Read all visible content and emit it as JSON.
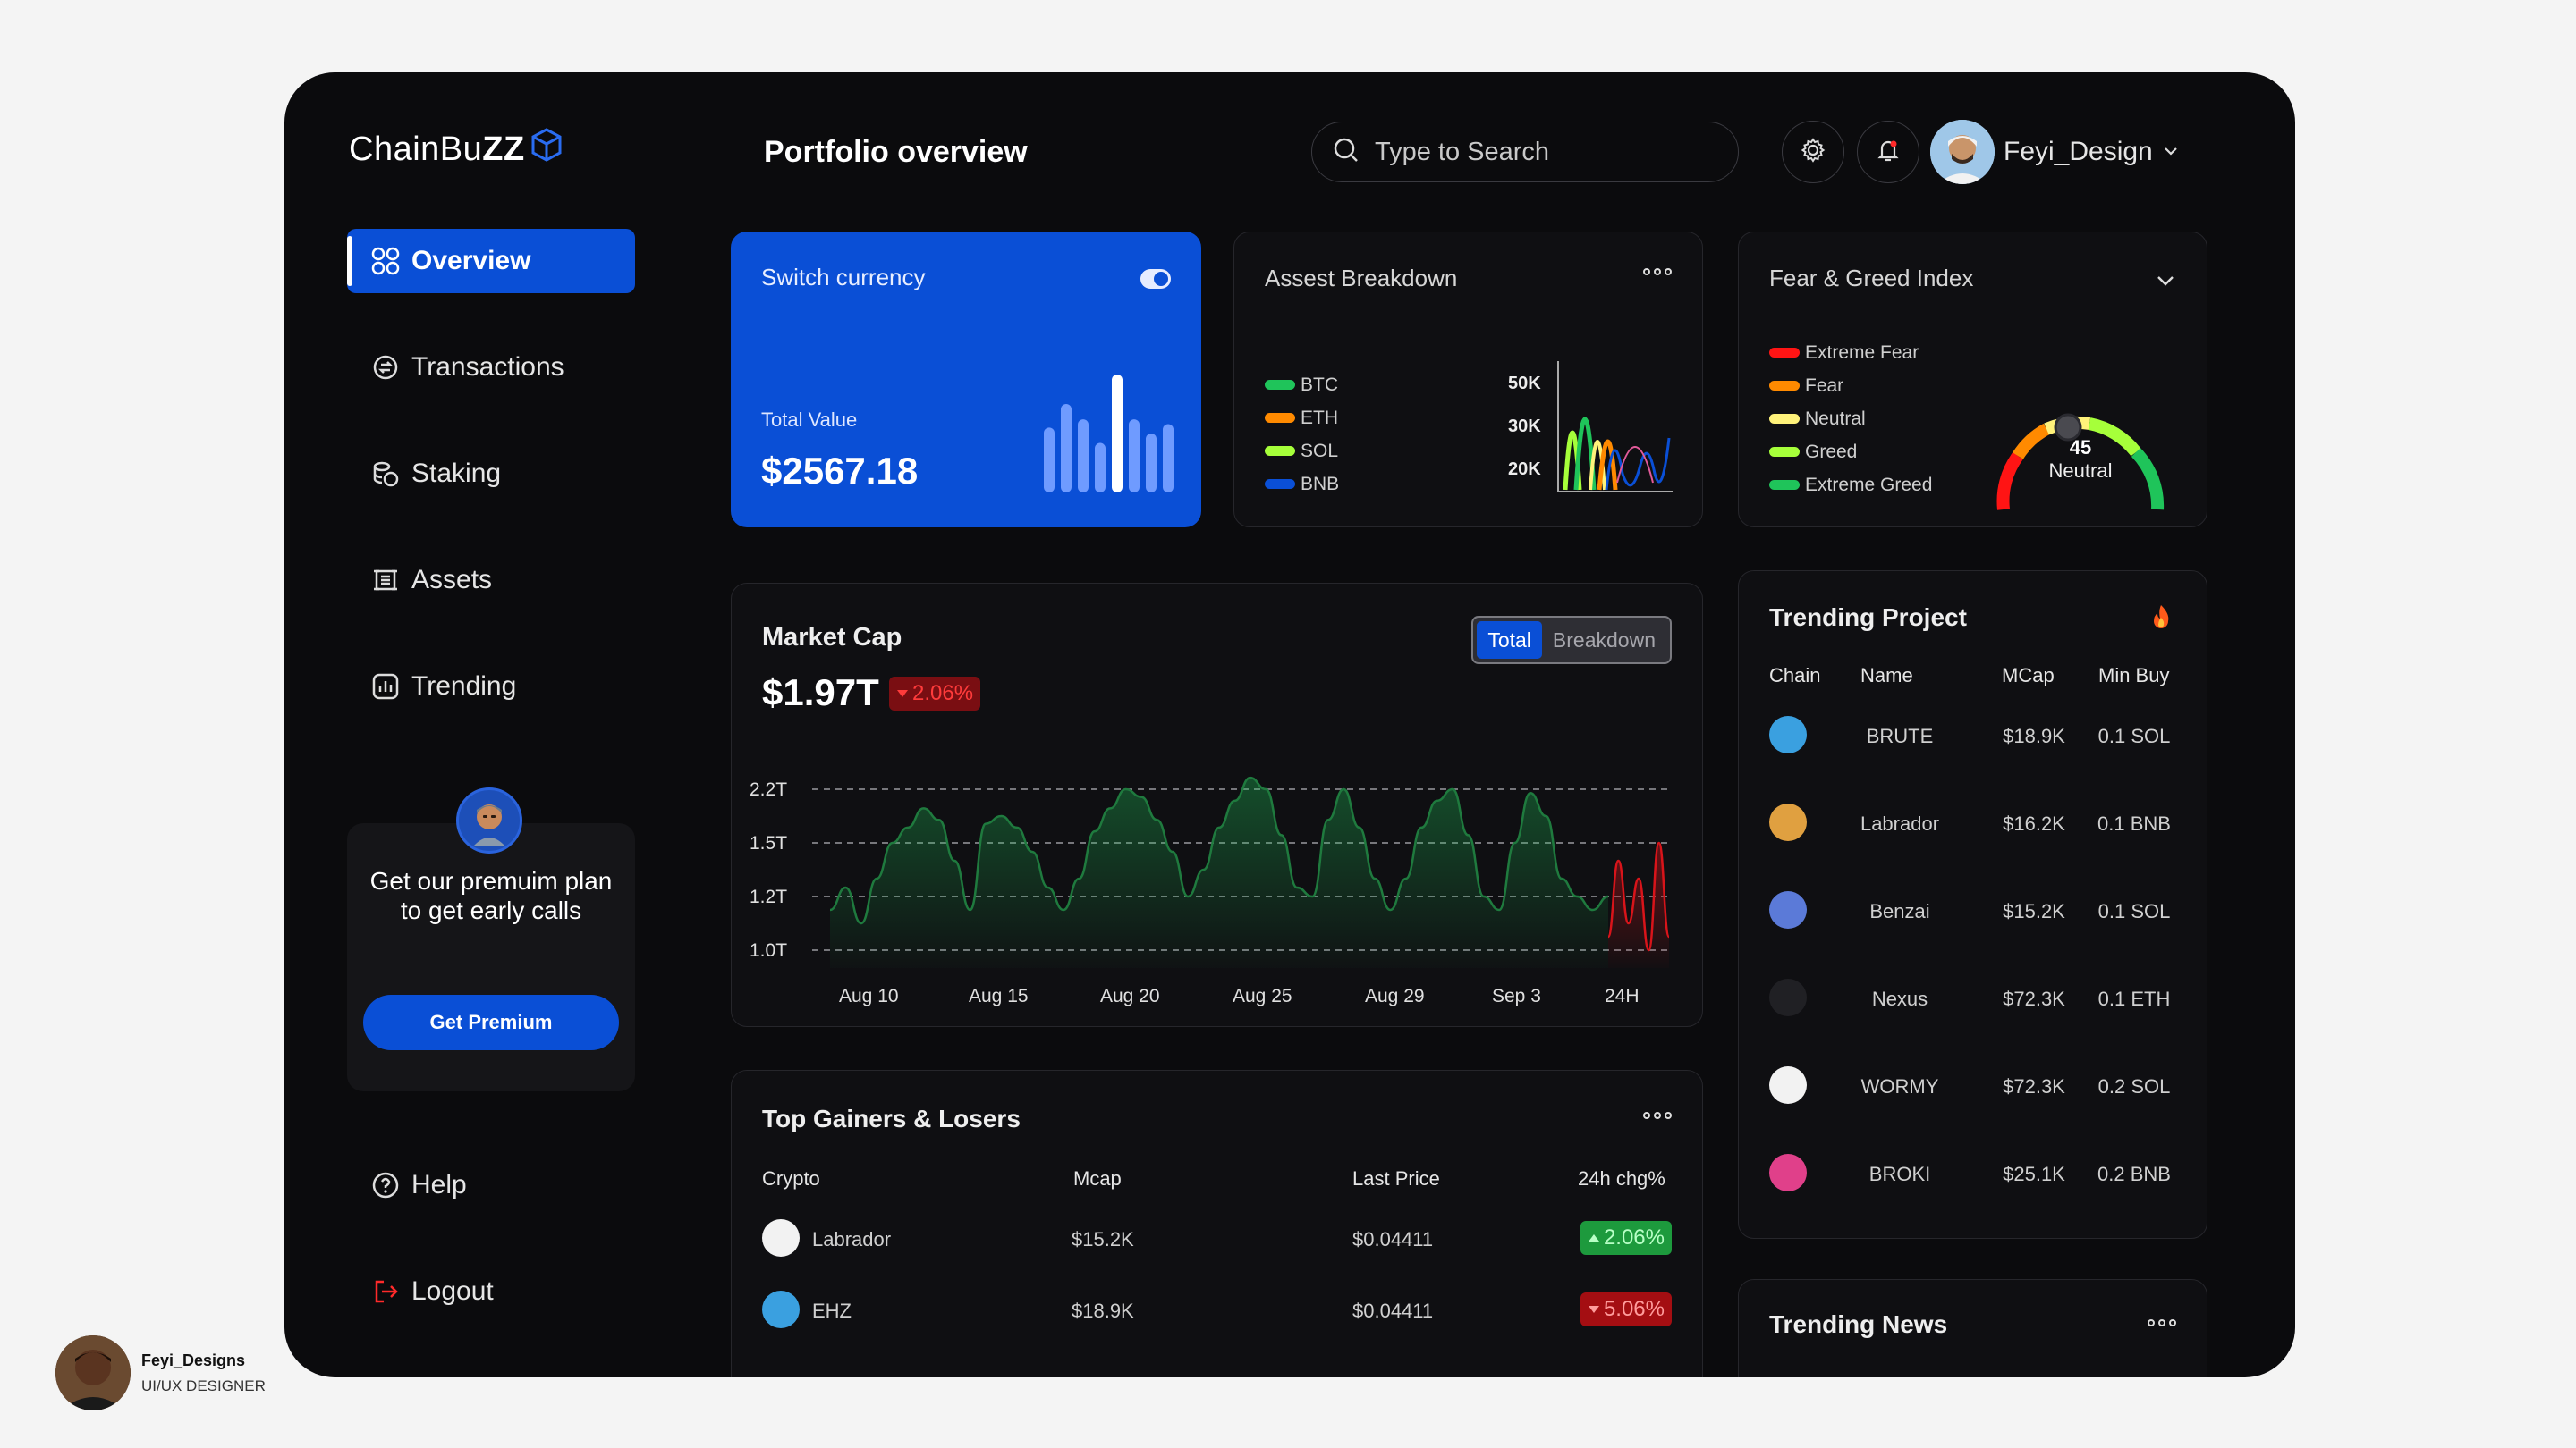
{
  "brand": {
    "name_light": "ChainBu",
    "name_bold": "ZZ"
  },
  "nav": [
    {
      "label": "Overview",
      "icon": "grid-icon"
    },
    {
      "label": "Transactions",
      "icon": "transactions-icon"
    },
    {
      "label": "Staking",
      "icon": "staking-icon"
    },
    {
      "label": "Assets",
      "icon": "assets-icon"
    },
    {
      "label": "Trending",
      "icon": "trending-icon"
    }
  ],
  "promo": {
    "text": "Get our premuim plan to get early calls",
    "button": "Get Premium"
  },
  "bottom_links": {
    "help": "Help",
    "logout": "Logout"
  },
  "header": {
    "title": "Portfolio overview",
    "search_placeholder": "Type to Search",
    "username": "Feyi_Design"
  },
  "currency_card": {
    "title": "Switch currency",
    "total_label": "Total Value",
    "total_value": "$2567.18",
    "mini_bars": [
      0.55,
      0.75,
      0.62,
      0.42,
      1.0,
      0.62,
      0.5,
      0.58
    ]
  },
  "asset_breakdown": {
    "title": "Assest Breakdown",
    "legend": [
      {
        "name": "BTC",
        "color": "#1fc45a"
      },
      {
        "name": "ETH",
        "color": "#ff8a00"
      },
      {
        "name": "SOL",
        "color": "#a6ff3a"
      },
      {
        "name": "BNB",
        "color": "#0a4fd6"
      }
    ],
    "y_ticks": [
      "50K",
      "30K",
      "20K"
    ]
  },
  "fear_greed": {
    "title": "Fear & Greed Index",
    "legend": [
      {
        "name": "Extreme Fear",
        "color": "#ff1414"
      },
      {
        "name": "Fear",
        "color": "#ff8a00"
      },
      {
        "name": "Neutral",
        "color": "#fff27a"
      },
      {
        "name": "Greed",
        "color": "#a6ff3a"
      },
      {
        "name": "Extreme Greed",
        "color": "#1fc45a"
      }
    ],
    "value": "45",
    "label": "Neutral"
  },
  "market_cap": {
    "title": "Market Cap",
    "value": "$1.97T",
    "change": "2.06%",
    "toggle": [
      "Total",
      "Breakdown"
    ]
  },
  "chart_data": {
    "type": "area",
    "y_ticks": [
      "2.2T",
      "1.5T",
      "1.2T",
      "1.0T"
    ],
    "x_ticks": [
      "Aug 10",
      "Aug 15",
      "Aug 20",
      "Aug 25",
      "Aug 29",
      "Sep 3",
      "24H"
    ],
    "ylabel": "",
    "xlabel": "",
    "grid": "dashed horizontal",
    "series": [
      {
        "color": "#1fc45a",
        "values": [
          1.15,
          1.25,
          1.1,
          1.3,
          1.5,
          1.7,
          1.95,
          1.8,
          1.4,
          1.15,
          1.75,
          1.85,
          1.7,
          1.45,
          1.25,
          1.15,
          1.3,
          1.65,
          1.95,
          2.2,
          2.1,
          1.8,
          1.45,
          1.2,
          1.35,
          1.7,
          2.05,
          2.35,
          2.2,
          1.6,
          1.25,
          1.2,
          1.8,
          2.2,
          1.7,
          1.3,
          1.15,
          1.3,
          1.7,
          2.05,
          2.2,
          1.6,
          1.2,
          1.15,
          1.5,
          2.15,
          1.85,
          1.3,
          1.2,
          1.15,
          1.2
        ]
      },
      {
        "color": "#d8141a",
        "values": [
          1.05,
          1.4,
          1.1,
          1.3,
          1.0,
          1.5,
          1.05
        ]
      }
    ]
  },
  "gainers": {
    "title": "Top Gainers & Losers",
    "headers": [
      "Crypto",
      "Mcap",
      "Last Price",
      "24h chg%"
    ],
    "rows": [
      {
        "name": "Labrador",
        "mcap": "$15.2K",
        "price": "$0.04411",
        "chg": "2.06%",
        "dir": "up"
      },
      {
        "name": "EHZ",
        "mcap": "$18.9K",
        "price": "$0.04411",
        "chg": "5.06%",
        "dir": "down"
      }
    ]
  },
  "trending": {
    "title": "Trending Project",
    "headers": [
      "Chain",
      "Name",
      "MCap",
      "Min Buy"
    ],
    "rows": [
      {
        "name": "BRUTE",
        "mcap": "$18.9K",
        "min": "0.1 SOL",
        "color": "#3aa0e0"
      },
      {
        "name": "Labrador",
        "mcap": "$16.2K",
        "min": "0.1 BNB",
        "color": "#e0a040"
      },
      {
        "name": "Benzai",
        "mcap": "$15.2K",
        "min": "0.1 SOL",
        "color": "#5b7ad8"
      },
      {
        "name": "Nexus",
        "mcap": "$72.3K",
        "min": "0.1 ETH",
        "color": "#202024"
      },
      {
        "name": "WORMY",
        "mcap": "$72.3K",
        "min": "0.2 SOL",
        "color": "#f2f2f2"
      },
      {
        "name": "BROKI",
        "mcap": "$25.1K",
        "min": "0.2 BNB",
        "color": "#e0408a"
      }
    ]
  },
  "news": {
    "title": "Trending News"
  },
  "credit": {
    "name": "Feyi_Designs",
    "role": "UI/UX DESIGNER"
  }
}
